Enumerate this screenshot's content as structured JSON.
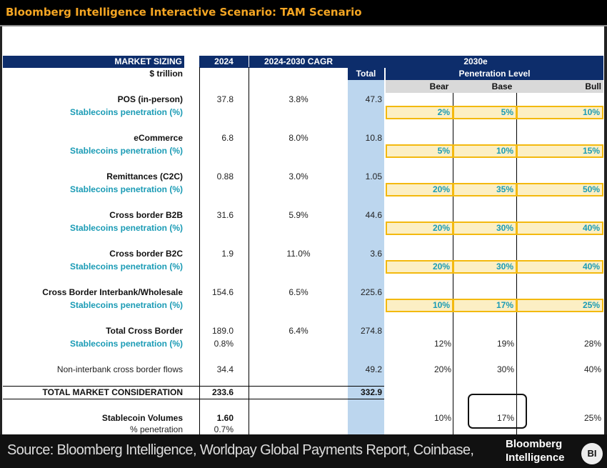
{
  "title": "Bloomberg Intelligence Interactive Scenario: TAM Scenario",
  "headers": {
    "market_sizing": "MARKET SIZING",
    "y2024": "2024",
    "cagr": "2024-2030 CAGR",
    "y2030": "2030e",
    "units": "$ trillion",
    "total": "Total",
    "penetration_level": "Penetration Level",
    "bear": "Bear",
    "base": "Base",
    "bull": "Bull"
  },
  "segments": [
    {
      "label": "POS (in-person)",
      "v2024": "37.8",
      "cagr": "3.8%",
      "total": "47.3",
      "pen_label": "Stablecoins penetration (%)",
      "bear": "2%",
      "base": "5%",
      "bull": "10%"
    },
    {
      "label": "eCommerce",
      "v2024": "6.8",
      "cagr": "8.0%",
      "total": "10.8",
      "pen_label": "Stablecoins penetration (%)",
      "bear": "5%",
      "base": "10%",
      "bull": "15%"
    },
    {
      "label": "Remittances (C2C)",
      "v2024": "0.88",
      "cagr": "3.0%",
      "total": "1.05",
      "pen_label": "Stablecoins penetration (%)",
      "bear": "20%",
      "base": "35%",
      "bull": "50%"
    },
    {
      "label": "Cross border B2B",
      "v2024": "31.6",
      "cagr": "5.9%",
      "total": "44.6",
      "pen_label": "Stablecoins penetration (%)",
      "bear": "20%",
      "base": "30%",
      "bull": "40%"
    },
    {
      "label": "Cross border B2C",
      "v2024": "1.9",
      "cagr": "11.0%",
      "total": "3.6",
      "pen_label": "Stablecoins penetration (%)",
      "bear": "20%",
      "base": "30%",
      "bull": "40%"
    },
    {
      "label": "Cross Border Interbank/Wholesale",
      "v2024": "154.6",
      "cagr": "6.5%",
      "total": "225.6",
      "pen_label": "Stablecoins penetration (%)",
      "bear": "10%",
      "base": "17%",
      "bull": "25%"
    }
  ],
  "total_cross_border": {
    "label": "Total Cross Border",
    "v2024": "189.0",
    "cagr": "6.4%",
    "total": "274.8",
    "pen_label": "Stablecoins penetration (%)",
    "pen_2024": "0.8%",
    "bear": "12%",
    "base": "19%",
    "bull": "28%"
  },
  "non_interbank": {
    "label": "Non-interbank cross border flows",
    "v2024": "34.4",
    "total": "49.2",
    "bear": "20%",
    "base": "30%",
    "bull": "40%"
  },
  "total_market": {
    "label": "TOTAL MARKET CONSIDERATION",
    "v2024": "233.6",
    "total": "332.9"
  },
  "stablecoin_volumes": {
    "label": "Stablecoin Volumes",
    "v2024": "1.60",
    "pen_label": "% penetration",
    "pen_2024": "0.7%",
    "bear": "10%",
    "base": "17%",
    "bull": "25%"
  },
  "footer": {
    "source": "Source:  Bloomberg Intelligence, Worldpay Global Payments Report, Coinbase,",
    "logo": "Bloomberg Intelligence",
    "badge": "BI"
  }
}
